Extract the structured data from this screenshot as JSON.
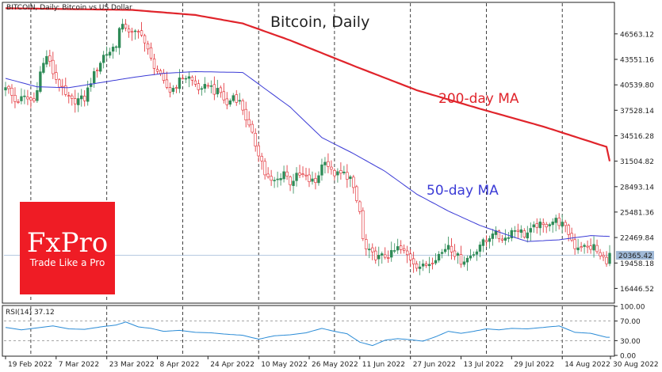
{
  "chart_data": {
    "type": "candlestick",
    "header": "BITCOIN, Daily:  Bitcoin vs US Dollar",
    "title": "Bitcoin, Daily",
    "price_axis": {
      "ylim": [
        14800,
        50200
      ],
      "ticks": [
        46563.12,
        43551.16,
        40539.8,
        37528.14,
        34516.28,
        31504.82,
        28493.14,
        25481.36,
        22469.84,
        19458.18,
        16446.52
      ]
    },
    "current_price": {
      "label": "20365.42",
      "value": 20365.42
    },
    "x_ticks": [
      "19 Feb 2022",
      "7 Mar 2022",
      "23 Mar 2022",
      "8 Apr 2022",
      "24 Apr 2022",
      "10 May 2022",
      "26 May 2022",
      "11 Jun 2022",
      "27 Jun 2022",
      "13 Jul 2022",
      "29 Jul 2022",
      "14 Aug 2022",
      "30 Aug 2022"
    ],
    "n_bars": 192,
    "anchor_closes": [
      [
        0,
        40500
      ],
      [
        3,
        38600
      ],
      [
        6,
        39000
      ],
      [
        9,
        38600
      ],
      [
        11,
        42000
      ],
      [
        13,
        44000
      ],
      [
        15,
        42000
      ],
      [
        17,
        40500
      ],
      [
        19,
        39200
      ],
      [
        21,
        38600
      ],
      [
        23,
        38800
      ],
      [
        25,
        38900
      ],
      [
        27,
        41000
      ],
      [
        29,
        42500
      ],
      [
        31,
        44000
      ],
      [
        33,
        44500
      ],
      [
        35,
        45400
      ],
      [
        36,
        47100
      ],
      [
        38,
        47500
      ],
      [
        40,
        46500
      ],
      [
        43,
        46800
      ],
      [
        44,
        45500
      ],
      [
        46,
        43500
      ],
      [
        48,
        42200
      ],
      [
        50,
        40700
      ],
      [
        52,
        39800
      ],
      [
        54,
        40500
      ],
      [
        56,
        41500
      ],
      [
        58,
        41400
      ],
      [
        60,
        40600
      ],
      [
        62,
        39700
      ],
      [
        64,
        40700
      ],
      [
        66,
        39800
      ],
      [
        68,
        39600
      ],
      [
        70,
        38100
      ],
      [
        72,
        39300
      ],
      [
        74,
        38500
      ],
      [
        75,
        37700
      ],
      [
        77,
        35500
      ],
      [
        79,
        33500
      ],
      [
        81,
        31500
      ],
      [
        82,
        30000
      ],
      [
        84,
        29000
      ],
      [
        86,
        29300
      ],
      [
        88,
        30300
      ],
      [
        90,
        29000
      ],
      [
        92,
        29700
      ],
      [
        94,
        29800
      ],
      [
        96,
        29200
      ],
      [
        98,
        29000
      ],
      [
        100,
        31000
      ],
      [
        101,
        31800
      ],
      [
        103,
        30200
      ],
      [
        105,
        29900
      ],
      [
        107,
        30000
      ],
      [
        109,
        29500
      ],
      [
        110,
        28000
      ],
      [
        112,
        25500
      ],
      [
        113,
        22200
      ],
      [
        114,
        21000
      ],
      [
        116,
        20400
      ],
      [
        118,
        20100
      ],
      [
        120,
        20300
      ],
      [
        122,
        20500
      ],
      [
        124,
        21200
      ],
      [
        126,
        20700
      ],
      [
        128,
        20000
      ],
      [
        130,
        19200
      ],
      [
        132,
        19000
      ],
      [
        134,
        19500
      ],
      [
        136,
        20200
      ],
      [
        138,
        20700
      ],
      [
        140,
        21700
      ],
      [
        142,
        20600
      ],
      [
        144,
        19700
      ],
      [
        146,
        20000
      ],
      [
        148,
        20600
      ],
      [
        150,
        21700
      ],
      [
        152,
        22000
      ],
      [
        154,
        23200
      ],
      [
        156,
        22500
      ],
      [
        158,
        22400
      ],
      [
        160,
        23300
      ],
      [
        162,
        23500
      ],
      [
        164,
        22800
      ],
      [
        166,
        23200
      ],
      [
        168,
        24000
      ],
      [
        170,
        23800
      ],
      [
        172,
        24300
      ],
      [
        174,
        24500
      ],
      [
        176,
        24000
      ],
      [
        178,
        23000
      ],
      [
        180,
        21400
      ],
      [
        182,
        21500
      ],
      [
        184,
        21200
      ],
      [
        186,
        21400
      ],
      [
        188,
        20200
      ],
      [
        190,
        19800
      ],
      [
        191,
        20365
      ]
    ],
    "ma200": [
      [
        0,
        49600
      ],
      [
        40,
        49400
      ],
      [
        60,
        48800
      ],
      [
        75,
        47800
      ],
      [
        90,
        45800
      ],
      [
        110,
        42800
      ],
      [
        130,
        39900
      ],
      [
        150,
        37700
      ],
      [
        170,
        35600
      ],
      [
        190,
        33200
      ],
      [
        191,
        31500
      ]
    ],
    "ma50": [
      [
        0,
        41300
      ],
      [
        10,
        40300
      ],
      [
        20,
        40200
      ],
      [
        30,
        40800
      ],
      [
        40,
        41400
      ],
      [
        50,
        41900
      ],
      [
        60,
        42100
      ],
      [
        75,
        42000
      ],
      [
        90,
        37900
      ],
      [
        100,
        34300
      ],
      [
        110,
        32400
      ],
      [
        120,
        30300
      ],
      [
        130,
        27600
      ],
      [
        140,
        25600
      ],
      [
        150,
        23900
      ],
      [
        160,
        22600
      ],
      [
        165,
        22000
      ],
      [
        175,
        22200
      ],
      [
        185,
        22700
      ],
      [
        191,
        22600
      ]
    ],
    "ma200_label": "200-day MA",
    "ma50_label": "50-day MA",
    "rsi": {
      "header": "RSI(14) 37.12",
      "ylim": [
        0,
        100
      ],
      "ticks": [
        100.0,
        70.0,
        30.0,
        0.0
      ],
      "levels": [
        70,
        30
      ],
      "values": [
        [
          0,
          57
        ],
        [
          5,
          52
        ],
        [
          10,
          56
        ],
        [
          15,
          60
        ],
        [
          20,
          54
        ],
        [
          25,
          53
        ],
        [
          30,
          58
        ],
        [
          35,
          62
        ],
        [
          38,
          68
        ],
        [
          42,
          58
        ],
        [
          46,
          55
        ],
        [
          50,
          49
        ],
        [
          55,
          51
        ],
        [
          60,
          47
        ],
        [
          65,
          46
        ],
        [
          70,
          43
        ],
        [
          75,
          41
        ],
        [
          80,
          33
        ],
        [
          85,
          40
        ],
        [
          90,
          42
        ],
        [
          95,
          46
        ],
        [
          100,
          55
        ],
        [
          104,
          49
        ],
        [
          108,
          44
        ],
        [
          112,
          27
        ],
        [
          116,
          20
        ],
        [
          120,
          31
        ],
        [
          124,
          34
        ],
        [
          128,
          32
        ],
        [
          132,
          29
        ],
        [
          136,
          38
        ],
        [
          140,
          49
        ],
        [
          144,
          45
        ],
        [
          148,
          49
        ],
        [
          152,
          54
        ],
        [
          156,
          52
        ],
        [
          160,
          55
        ],
        [
          165,
          54
        ],
        [
          170,
          57
        ],
        [
          175,
          60
        ],
        [
          180,
          47
        ],
        [
          185,
          45
        ],
        [
          190,
          37
        ],
        [
          191,
          37
        ]
      ]
    },
    "colors": {
      "up": "#2e8b57",
      "down": "#e0242b",
      "ma200": "#e0242b",
      "ma50": "#3b3bd6",
      "rsi": "#2a8bd6",
      "price_line": "#9fb8d6"
    }
  },
  "logo": {
    "brand": "FxPro",
    "tagline": "Trade Like a Pro",
    "color": "#ef1c25"
  }
}
